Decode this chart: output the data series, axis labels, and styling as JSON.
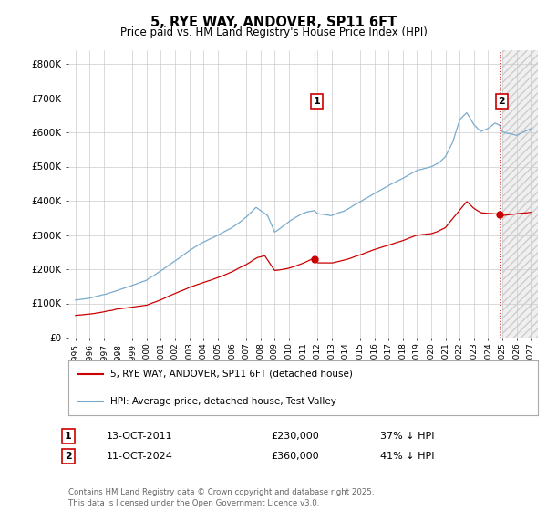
{
  "title": "5, RYE WAY, ANDOVER, SP11 6FT",
  "subtitle": "Price paid vs. HM Land Registry's House Price Index (HPI)",
  "ylabel_ticks": [
    "£0",
    "£100K",
    "£200K",
    "£300K",
    "£400K",
    "£500K",
    "£600K",
    "£700K",
    "£800K"
  ],
  "ylim": [
    0,
    840000
  ],
  "xlim_start": 1994.5,
  "xlim_end": 2027.5,
  "red_color": "#cc0000",
  "blue_color": "#7aabcc",
  "marker1_x": 2011.8,
  "marker2_x": 2024.8,
  "marker1_label": "1",
  "marker2_label": "2",
  "annotation1_date": "13-OCT-2011",
  "annotation1_price": "£230,000",
  "annotation1_hpi": "37% ↓ HPI",
  "annotation2_date": "11-OCT-2024",
  "annotation2_price": "£360,000",
  "annotation2_hpi": "41% ↓ HPI",
  "legend_line1": "5, RYE WAY, ANDOVER, SP11 6FT (detached house)",
  "legend_line2": "HPI: Average price, detached house, Test Valley",
  "footer": "Contains HM Land Registry data © Crown copyright and database right 2025.\nThis data is licensed under the Open Government Licence v3.0.",
  "grid_color": "#cccccc",
  "bg_color": "#ffffff",
  "hatch_start": 2025.0,
  "sale1_dot_x": 2011.8,
  "sale1_dot_y": 230000,
  "sale2_dot_x": 2024.8,
  "sale2_dot_y": 360000
}
